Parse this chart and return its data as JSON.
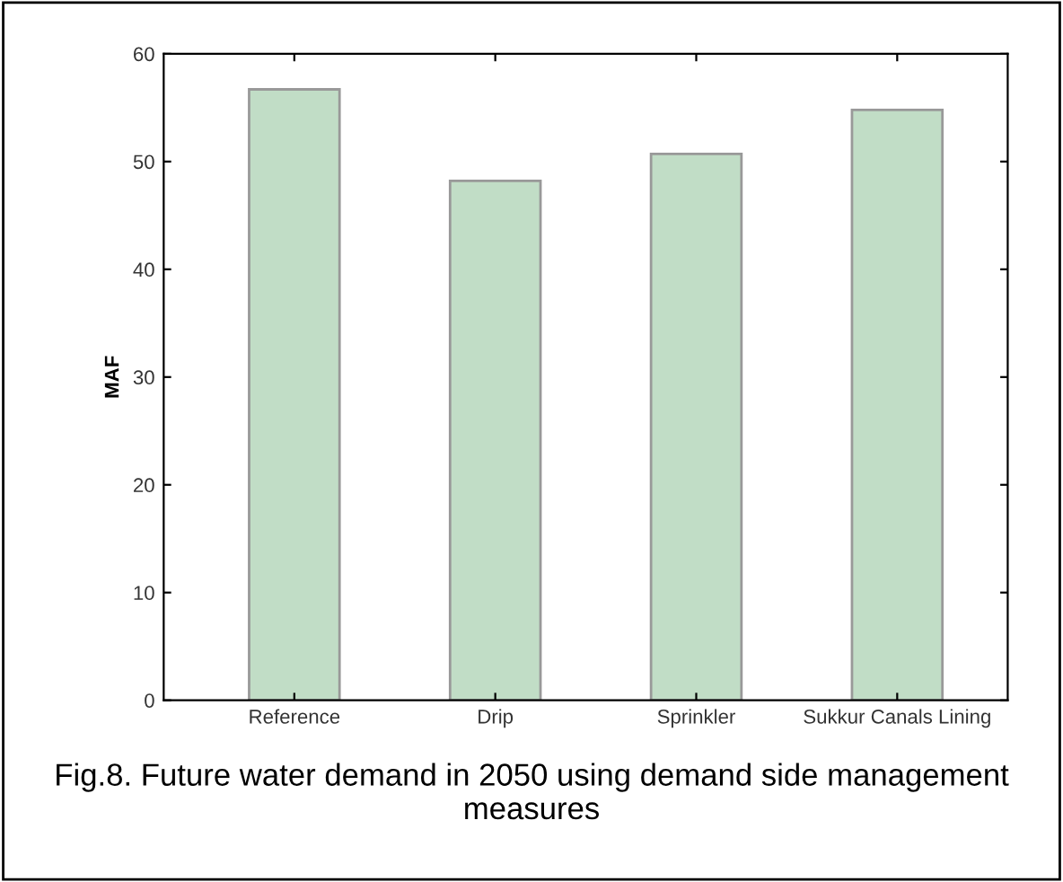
{
  "chart_data": {
    "type": "bar",
    "ylabel": "MAF",
    "categories": [
      "Reference",
      "Drip",
      "Sprinkler",
      "Sukkur Canals Lining"
    ],
    "series": [
      {
        "color": "#c1ddc6",
        "values": [
          56.7,
          48.2,
          50.7,
          54.8
        ]
      }
    ],
    "ylim": [
      0,
      60
    ],
    "yticks": [
      0,
      10,
      20,
      30,
      40,
      50,
      60
    ],
    "grid": false,
    "legend": false,
    "annotations": [
      "Fig.8. Future water demand in 2050 using demand side management measures"
    ]
  }
}
